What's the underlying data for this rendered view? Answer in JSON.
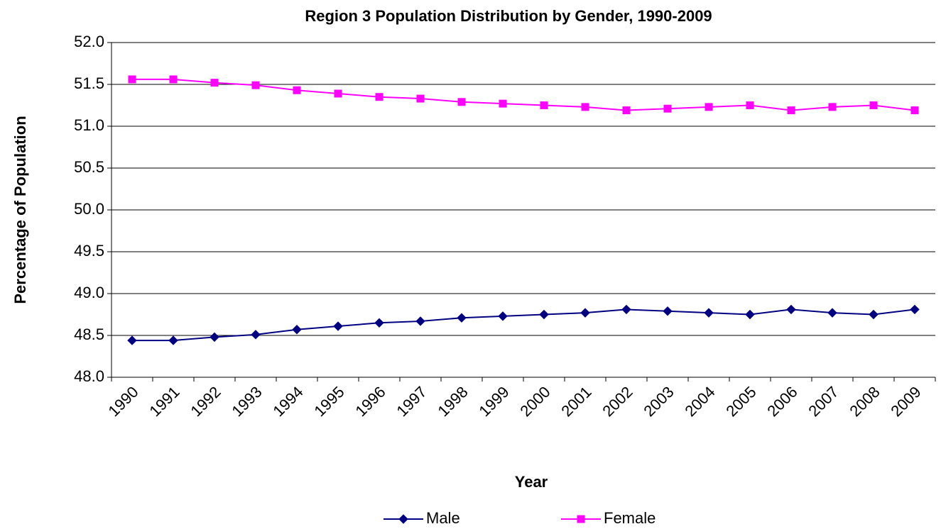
{
  "chart_data": {
    "type": "line",
    "title": "Region 3 Population Distribution by Gender, 1990-2009",
    "x_label": "Year",
    "y_label": "Percentage of Population",
    "categories": [
      "1990",
      "1991",
      "1992",
      "1993",
      "1994",
      "1995",
      "1996",
      "1997",
      "1998",
      "1999",
      "2000",
      "2001",
      "2002",
      "2003",
      "2004",
      "2005",
      "2006",
      "2007",
      "2008",
      "2009"
    ],
    "series": [
      {
        "name": "Male",
        "color": "#000080",
        "marker": "diamond",
        "values": [
          48.44,
          48.44,
          48.48,
          48.51,
          48.57,
          48.61,
          48.65,
          48.67,
          48.71,
          48.73,
          48.75,
          48.77,
          48.81,
          48.79,
          48.77,
          48.75,
          48.81,
          48.77,
          48.75,
          48.81
        ]
      },
      {
        "name": "Female",
        "color": "#ff00ff",
        "marker": "square",
        "values": [
          51.56,
          51.56,
          51.52,
          51.49,
          51.43,
          51.39,
          51.35,
          51.33,
          51.29,
          51.27,
          51.25,
          51.23,
          51.19,
          51.21,
          51.23,
          51.25,
          51.19,
          51.23,
          51.25,
          51.19
        ]
      }
    ],
    "ylim": [
      48,
      52
    ],
    "yticks": [
      {
        "value": 48,
        "label": "48.0"
      },
      48.5,
      {
        "value": 49,
        "label": "49.0"
      },
      49.5,
      {
        "value": 50,
        "label": "50.0"
      },
      50.5,
      {
        "value": 51,
        "label": "51.0"
      },
      51.5,
      {
        "value": 52,
        "label": "52.0"
      }
    ],
    "grid": true,
    "legend": "bottom"
  }
}
